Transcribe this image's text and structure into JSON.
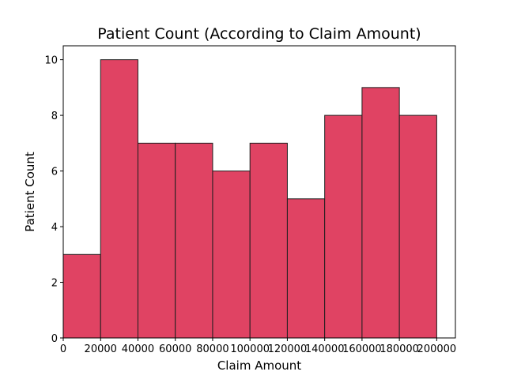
{
  "chart_data": {
    "type": "bar",
    "title": "Patient Count (According to Claim Amount)",
    "xlabel": "Claim Amount",
    "ylabel": "Patient Count",
    "bins": [
      {
        "start": 0,
        "end": 20000,
        "count": 3
      },
      {
        "start": 20000,
        "end": 40000,
        "count": 10
      },
      {
        "start": 40000,
        "end": 60000,
        "count": 7
      },
      {
        "start": 60000,
        "end": 80000,
        "count": 7
      },
      {
        "start": 80000,
        "end": 100000,
        "count": 6
      },
      {
        "start": 100000,
        "end": 120000,
        "count": 7
      },
      {
        "start": 120000,
        "end": 140000,
        "count": 5
      },
      {
        "start": 140000,
        "end": 160000,
        "count": 8
      },
      {
        "start": 160000,
        "end": 180000,
        "count": 9
      },
      {
        "start": 180000,
        "end": 200000,
        "count": 8
      }
    ],
    "xlim": [
      0,
      210000
    ],
    "ylim": [
      0,
      10.5
    ],
    "xticks": [
      "0",
      "20000",
      "40000",
      "60000",
      "80000",
      "100000",
      "120000",
      "140000",
      "160000",
      "180000",
      "200000"
    ],
    "yticks": [
      "0",
      "2",
      "4",
      "6",
      "8",
      "10"
    ],
    "grid": false,
    "colors": {
      "bar_fill": "#e04363",
      "bar_edge": "#1f1f1f"
    }
  }
}
